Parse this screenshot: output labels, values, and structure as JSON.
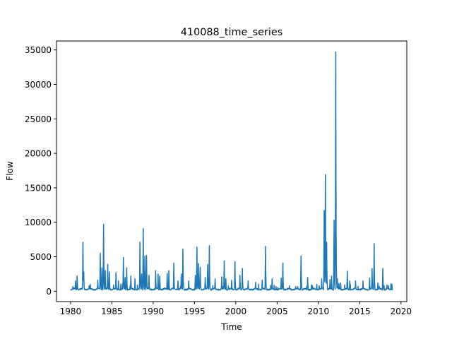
{
  "chart_data": {
    "type": "line",
    "title": "410088_time_series",
    "xlabel": "Time",
    "ylabel": "Flow",
    "xlim": [
      1978.3,
      2020.7
    ],
    "ylim": [
      -1500,
      36300
    ],
    "x_ticks": [
      1980,
      1985,
      1990,
      1995,
      2000,
      2005,
      2010,
      2015,
      2020
    ],
    "x_tick_labels": [
      "1980",
      "1985",
      "1990",
      "1995",
      "2000",
      "2005",
      "2010",
      "2015",
      "2020"
    ],
    "y_ticks": [
      0,
      5000,
      10000,
      15000,
      20000,
      25000,
      30000,
      35000
    ],
    "y_tick_labels": [
      "0",
      "5000",
      "10000",
      "15000",
      "20000",
      "25000",
      "30000",
      "35000"
    ],
    "grid": false,
    "legend": "none",
    "series": [
      {
        "color": "#1f77b4",
        "x_start": 1980.0,
        "x_end": 2019.0,
        "baseline": 150,
        "peaks": [
          [
            1980.6,
            1500
          ],
          [
            1980.8,
            2200
          ],
          [
            1981.5,
            7100
          ],
          [
            1981.6,
            2800
          ],
          [
            1983.3,
            1600
          ],
          [
            1983.6,
            5500
          ],
          [
            1983.8,
            3400
          ],
          [
            1984.0,
            9700
          ],
          [
            1984.2,
            3000
          ],
          [
            1984.5,
            3900
          ],
          [
            1984.7,
            2800
          ],
          [
            1985.5,
            2700
          ],
          [
            1985.8,
            1500
          ],
          [
            1986.4,
            4900
          ],
          [
            1986.6,
            2000
          ],
          [
            1986.8,
            3400
          ],
          [
            1987.3,
            2200
          ],
          [
            1987.8,
            1800
          ],
          [
            1988.4,
            7100
          ],
          [
            1988.6,
            2500
          ],
          [
            1988.8,
            9100
          ],
          [
            1989.0,
            5100
          ],
          [
            1989.2,
            5200
          ],
          [
            1989.5,
            2300
          ],
          [
            1990.3,
            3000
          ],
          [
            1990.6,
            2500
          ],
          [
            1990.8,
            2200
          ],
          [
            1991.7,
            2600
          ],
          [
            1991.9,
            3000
          ],
          [
            1992.5,
            4100
          ],
          [
            1993.0,
            1500
          ],
          [
            1993.4,
            2500
          ],
          [
            1993.6,
            6100
          ],
          [
            1994.3,
            1500
          ],
          [
            1995.1,
            2300
          ],
          [
            1995.3,
            6400
          ],
          [
            1995.5,
            4000
          ],
          [
            1995.7,
            3500
          ],
          [
            1996.3,
            2000
          ],
          [
            1996.6,
            3900
          ],
          [
            1996.8,
            6600
          ],
          [
            1997.5,
            1800
          ],
          [
            1998.3,
            2100
          ],
          [
            1998.6,
            4400
          ],
          [
            1998.8,
            1800
          ],
          [
            1999.5,
            1600
          ],
          [
            1999.9,
            4300
          ],
          [
            2000.5,
            2300
          ],
          [
            2000.8,
            3300
          ],
          [
            2001.5,
            1500
          ],
          [
            2002.4,
            1300
          ],
          [
            2003.2,
            1600
          ],
          [
            2003.6,
            6500
          ],
          [
            2004.4,
            1800
          ],
          [
            2005.5,
            1900
          ],
          [
            2005.7,
            4100
          ],
          [
            2006.5,
            800
          ],
          [
            2007.5,
            700
          ],
          [
            2007.9,
            5100
          ],
          [
            2008.7,
            2000
          ],
          [
            2009.3,
            700
          ],
          [
            2009.8,
            1000
          ],
          [
            2010.1,
            800
          ],
          [
            2010.4,
            1800
          ],
          [
            2010.7,
            11700
          ],
          [
            2010.85,
            16900
          ],
          [
            2011.0,
            7100
          ],
          [
            2011.4,
            1700
          ],
          [
            2011.6,
            2200
          ],
          [
            2011.9,
            10300
          ],
          [
            2012.1,
            34700
          ],
          [
            2012.3,
            1800
          ],
          [
            2012.7,
            1200
          ],
          [
            2013.5,
            2900
          ],
          [
            2013.8,
            1500
          ],
          [
            2014.5,
            1500
          ],
          [
            2015.4,
            1500
          ],
          [
            2016.2,
            1900
          ],
          [
            2016.5,
            3300
          ],
          [
            2016.75,
            6900
          ],
          [
            2017.2,
            1200
          ],
          [
            2017.8,
            3300
          ],
          [
            2018.3,
            900
          ],
          [
            2018.9,
            1000
          ]
        ]
      }
    ]
  }
}
